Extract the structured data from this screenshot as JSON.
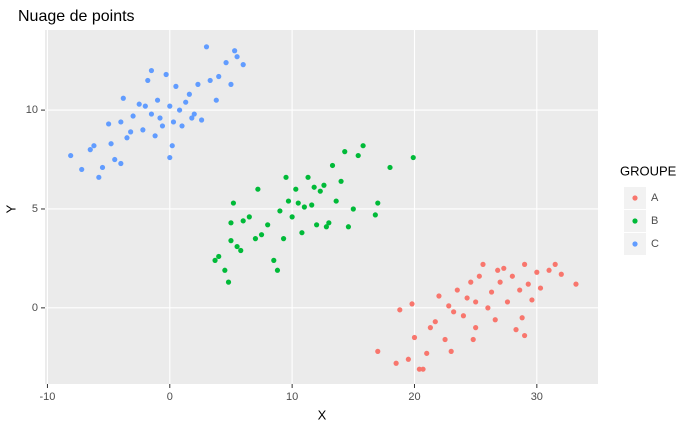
{
  "chart_data": {
    "type": "scatter",
    "title": "Nuage de points",
    "x_label": "X",
    "y_label": "Y",
    "legend_title": "GROUPE",
    "legend_position": "right",
    "grid": true,
    "xlim": [
      -10.2,
      35.0
    ],
    "ylim": [
      -3.85,
      14.05
    ],
    "xticks": [
      -10,
      0,
      10,
      20,
      30
    ],
    "yticks": [
      0,
      5,
      10
    ],
    "series": [
      {
        "name": "A",
        "color": "#F8766D",
        "x": [
          17,
          18.5,
          18.8,
          19.5,
          19.8,
          20,
          20.4,
          20.7,
          21,
          21.3,
          21.7,
          22,
          22.5,
          23,
          23.2,
          23.5,
          24,
          24.3,
          24.6,
          25,
          25.3,
          25.6,
          26,
          26.3,
          26.6,
          27,
          27.3,
          27.6,
          28,
          28.3,
          28.6,
          29,
          29.3,
          29.6,
          30,
          30.3,
          31,
          31.5,
          32,
          33.2,
          25,
          24.8,
          26.8,
          22.8,
          28.8,
          29
        ],
        "y": [
          -2.2,
          -2.8,
          -0.1,
          -2.6,
          0.2,
          -1.5,
          -3.1,
          -3.1,
          -2.3,
          -1,
          -0.7,
          0.6,
          -1.6,
          -2.2,
          -0.2,
          0.9,
          -0.4,
          0.5,
          1.3,
          -1,
          1.6,
          2.2,
          0,
          0.8,
          -0.6,
          1.3,
          2,
          0.3,
          1.6,
          -1.1,
          0.9,
          2.2,
          1.2,
          0.4,
          1.8,
          1,
          1.9,
          2.2,
          1.7,
          1.2,
          0.3,
          -1.6,
          1.9,
          0.1,
          -0.5,
          -1.4
        ]
      },
      {
        "name": "B",
        "color": "#00BA38",
        "x": [
          3.7,
          4,
          4.5,
          4.8,
          5,
          5.2,
          5.5,
          5.8,
          6,
          6.5,
          7,
          7.5,
          8,
          8.5,
          8.8,
          9,
          9.3,
          9.7,
          10,
          10.3,
          10.8,
          11,
          11.3,
          11.6,
          12,
          12.3,
          12.6,
          13,
          13.3,
          13.6,
          14,
          14.3,
          14.6,
          15,
          15.4,
          15.8,
          16.8,
          17,
          18,
          19.9,
          5,
          7.2,
          9.5,
          10.5,
          12.8,
          11.8
        ],
        "y": [
          2.4,
          2.6,
          1.9,
          1.3,
          3.4,
          5.3,
          3.1,
          2.9,
          4.4,
          4.6,
          3.5,
          3.7,
          4.2,
          2.4,
          1.9,
          4.9,
          3.5,
          5.4,
          4.6,
          6,
          3.8,
          5.1,
          6.6,
          5.2,
          4.2,
          5.9,
          6.2,
          4.3,
          7.2,
          5.4,
          6.4,
          7.9,
          4.1,
          5,
          7.7,
          8.2,
          4.7,
          5.3,
          7.1,
          7.6,
          4.3,
          6,
          6.6,
          5.3,
          4.1,
          6.1
        ]
      },
      {
        "name": "C",
        "color": "#619CFF",
        "x": [
          -8.1,
          -7.2,
          -6.5,
          -6.2,
          -5.8,
          -5.5,
          -5,
          -4.8,
          -4.5,
          -4,
          -3.8,
          -3.5,
          -3.2,
          -3,
          -2.5,
          -2.2,
          -1.8,
          -1.5,
          -1.2,
          -1,
          -0.6,
          -0.3,
          0,
          0,
          0.3,
          0.5,
          0.8,
          1,
          1.3,
          1.6,
          2,
          2.3,
          2.6,
          3,
          3.3,
          3.8,
          4,
          4.6,
          5,
          5.3,
          5.5,
          6,
          -1.5,
          -2,
          0.2,
          -0.8,
          1.8,
          -4
        ],
        "y": [
          7.7,
          7,
          8,
          8.2,
          6.6,
          7.1,
          9.3,
          8.3,
          7.5,
          9.4,
          10.6,
          8.6,
          8.9,
          9.7,
          10.3,
          9,
          11.5,
          9.8,
          8.7,
          10.5,
          9.2,
          11.8,
          7.6,
          10.2,
          9.4,
          11.2,
          10,
          9.2,
          10.4,
          10.8,
          9.8,
          11.3,
          9.5,
          13.2,
          11.5,
          10.5,
          11.7,
          12.4,
          11.3,
          13,
          12.7,
          12.3,
          12,
          10.2,
          8.2,
          9.6,
          9.6,
          7.3
        ]
      }
    ]
  }
}
